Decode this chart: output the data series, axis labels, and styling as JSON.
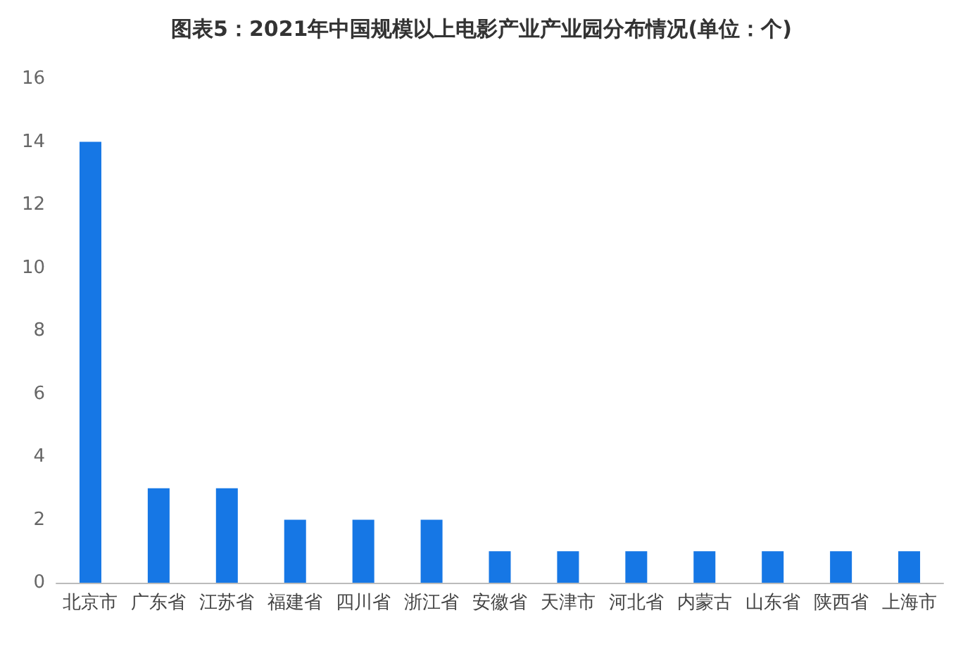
{
  "chart_data": {
    "type": "bar",
    "title": "图表5：2021年中国规模以上电影产业产业园分布情况(单位：个)",
    "categories": [
      "北京市",
      "广东省",
      "江苏省",
      "福建省",
      "四川省",
      "浙江省",
      "安徽省",
      "天津市",
      "河北省",
      "内蒙古",
      "山东省",
      "陕西省",
      "上海市"
    ],
    "values": [
      14,
      3,
      3,
      2,
      2,
      2,
      1,
      1,
      1,
      1,
      1,
      1,
      1
    ],
    "color": "#1677e5",
    "ylim": [
      0,
      16
    ],
    "yticks": [
      0,
      2,
      4,
      6,
      8,
      10,
      12,
      14,
      16
    ],
    "grid": false
  }
}
